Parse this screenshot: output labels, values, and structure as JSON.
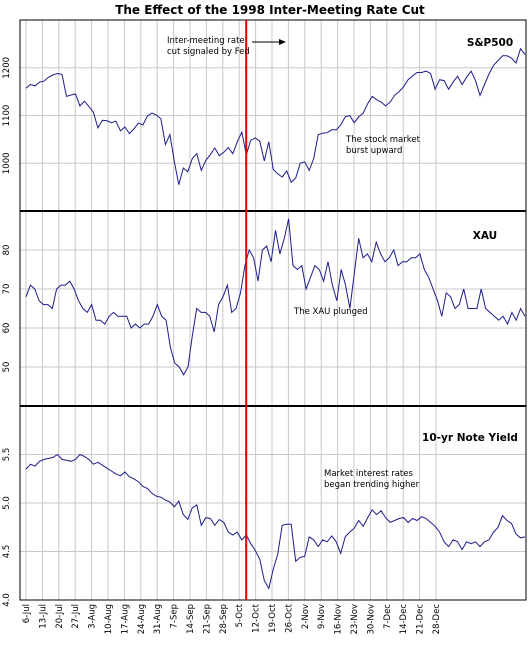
{
  "title": "The Effect of the 1998 Inter-Meeting Rate Cut",
  "chart_data": {
    "type": "line",
    "x_labels": [
      "6-Jul",
      "13-Jul",
      "20-Jul",
      "27-Jul",
      "3-Aug",
      "10-Aug",
      "17-Aug",
      "24-Aug",
      "31-Aug",
      "7-Sep",
      "14-Sep",
      "21-Sep",
      "28-Sep",
      "5-Oct",
      "12-Oct",
      "19-Oct",
      "26-Oct",
      "2-Nov",
      "9-Nov",
      "16-Nov",
      "23-Nov",
      "30-Nov",
      "7-Dec",
      "14-Dec",
      "21-Dec",
      "28-Dec"
    ],
    "event": {
      "x": "8-Oct",
      "annotation_line1": "Inter-meeting rate",
      "annotation_line2": "cut signaled by Fed",
      "color": "#dd0000"
    },
    "grid": true,
    "panels": [
      {
        "name": "S&P500",
        "ylim": [
          900,
          1300
        ],
        "yticks": [
          "1000",
          "1100",
          "1200"
        ],
        "note_line1": "The stock market",
        "note_line2": "burst upward",
        "values": [
          1157,
          1165,
          1162,
          1170,
          1172,
          1180,
          1185,
          1188,
          1186,
          1140,
          1143,
          1145,
          1120,
          1130,
          1119,
          1107,
          1074,
          1090,
          1089,
          1085,
          1088,
          1068,
          1076,
          1062,
          1072,
          1084,
          1080,
          1099,
          1105,
          1101,
          1093,
          1039,
          1060,
          1003,
          955,
          990,
          982,
          1010,
          1020,
          985,
          1006,
          1018,
          1032,
          1016,
          1023,
          1033,
          1020,
          1045,
          1065,
          1018,
          1048,
          1053,
          1046,
          1005,
          1045,
          987,
          978,
          971,
          984,
          960,
          969,
          1000,
          1003,
          985,
          1010,
          1060,
          1063,
          1064,
          1070,
          1070,
          1080,
          1097,
          1100,
          1085,
          1097,
          1105,
          1125,
          1140,
          1133,
          1128,
          1120,
          1128,
          1142,
          1150,
          1160,
          1175,
          1183,
          1190,
          1190,
          1193,
          1188,
          1155,
          1175,
          1173,
          1155,
          1170,
          1182,
          1165,
          1180,
          1193,
          1173,
          1142,
          1165,
          1187,
          1205,
          1215,
          1225,
          1225,
          1220,
          1210,
          1240,
          1228
        ]
      },
      {
        "name": "XAU",
        "ylim": [
          40,
          90
        ],
        "yticks": [
          "50",
          "60",
          "70",
          "80"
        ],
        "note_line1": "The XAU plunged",
        "note_line2": "",
        "values": [
          68,
          71,
          70,
          67,
          66,
          66,
          65,
          70,
          71,
          71,
          72,
          70,
          67,
          65,
          64,
          66,
          62,
          62,
          61,
          63,
          64,
          63,
          63,
          63,
          60,
          61,
          60,
          61,
          61,
          63,
          66,
          63,
          62,
          55,
          51,
          50,
          48,
          50,
          58,
          65,
          64,
          64,
          63,
          59,
          66,
          68,
          71,
          64,
          65,
          69,
          76,
          80,
          78,
          72,
          80,
          81,
          77,
          85,
          79,
          83,
          88,
          76,
          75,
          76,
          70,
          73,
          76,
          75,
          72,
          77,
          71,
          67,
          75,
          71,
          65,
          74,
          83,
          78,
          79,
          77,
          82,
          79,
          77,
          78,
          80,
          76,
          77,
          77,
          78,
          78,
          79,
          75,
          73,
          70,
          67,
          63,
          69,
          68,
          65,
          66,
          70,
          65,
          65,
          65,
          70,
          65,
          64,
          63,
          62,
          63,
          61,
          64,
          62,
          65,
          63
        ]
      },
      {
        "name": "10-yr Note Yield",
        "ylim": [
          4.0,
          6.0
        ],
        "yticks": [
          "4.0",
          "4.5",
          "5.0",
          "5.5"
        ],
        "note_line1": "Market interest rates",
        "note_line2": "began trending higher",
        "values": [
          5.35,
          5.4,
          5.38,
          5.43,
          5.45,
          5.46,
          5.47,
          5.5,
          5.45,
          5.44,
          5.43,
          5.45,
          5.5,
          5.48,
          5.45,
          5.4,
          5.42,
          5.39,
          5.36,
          5.33,
          5.3,
          5.28,
          5.32,
          5.27,
          5.25,
          5.22,
          5.17,
          5.15,
          5.1,
          5.07,
          5.06,
          5.03,
          5.01,
          4.96,
          5.02,
          4.88,
          4.83,
          4.95,
          4.98,
          4.77,
          4.85,
          4.84,
          4.77,
          4.83,
          4.8,
          4.7,
          4.67,
          4.7,
          4.62,
          4.67,
          4.58,
          4.51,
          4.42,
          4.2,
          4.12,
          4.32,
          4.47,
          4.77,
          4.78,
          4.78,
          4.4,
          4.44,
          4.45,
          4.65,
          4.62,
          4.55,
          4.62,
          4.6,
          4.66,
          4.6,
          4.48,
          4.65,
          4.7,
          4.74,
          4.82,
          4.76,
          4.85,
          4.93,
          4.88,
          4.92,
          4.85,
          4.8,
          4.82,
          4.84,
          4.85,
          4.8,
          4.84,
          4.82,
          4.86,
          4.84,
          4.8,
          4.76,
          4.7,
          4.6,
          4.55,
          4.62,
          4.6,
          4.52,
          4.6,
          4.58,
          4.6,
          4.55,
          4.6,
          4.62,
          4.7,
          4.75,
          4.87,
          4.82,
          4.79,
          4.68,
          4.64,
          4.65
        ]
      }
    ]
  }
}
